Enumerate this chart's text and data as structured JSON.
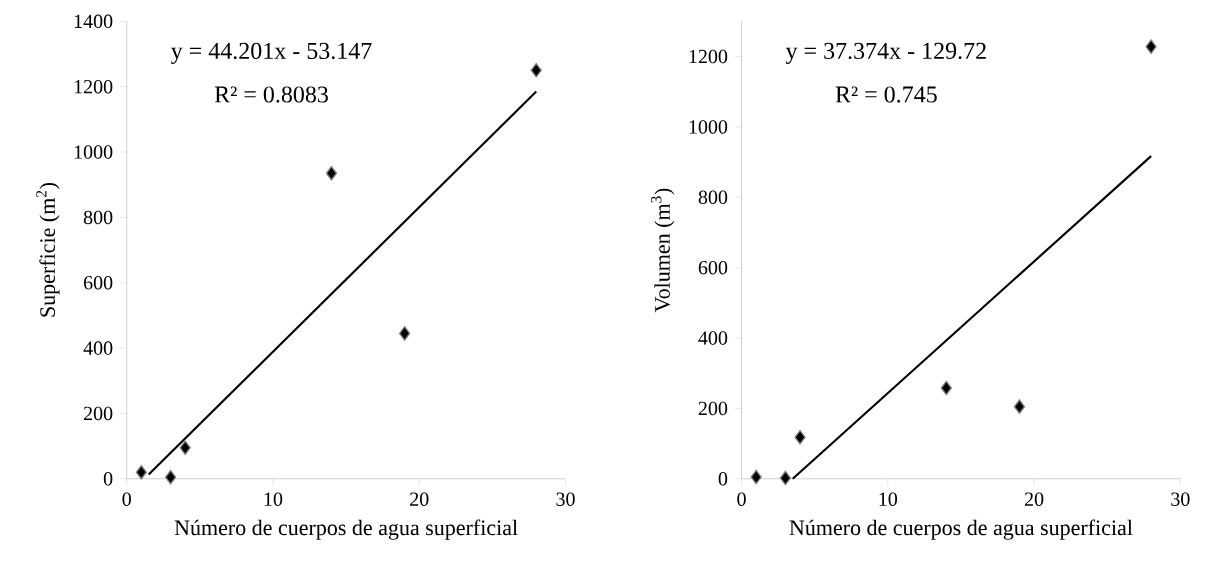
{
  "chart_data": [
    {
      "type": "scatter",
      "xlabel": "Número de cuerpos de agua superficial",
      "ylabel": "Superficie (m$^{2}$)",
      "annotations": [
        "y = 44.201x  - 53.147",
        "R² = 0.8083"
      ],
      "xlim": [
        0,
        30
      ],
      "xticks": [
        0,
        10,
        20,
        30
      ],
      "ylim": [
        0,
        1400
      ],
      "yticks": [
        0,
        200,
        400,
        600,
        800,
        1000,
        1200,
        1400
      ],
      "grid": false,
      "series": [
        {
          "marker": "diamond",
          "color": "#000000",
          "x": [
            1,
            3,
            4,
            14,
            19,
            28
          ],
          "values": [
            20,
            5,
            95,
            935,
            445,
            1250
          ]
        },
        {
          "type": "line",
          "marker": "none",
          "line_style": "solid",
          "color": "#000000",
          "x": [
            1.5,
            28
          ],
          "values": [
            13,
            1185
          ]
        }
      ]
    },
    {
      "type": "scatter",
      "xlabel": "Número de cuerpos de agua superficial",
      "ylabel": "Volumen (m$^{3}$)",
      "annotations": [
        "y = 37.374x  - 129.72",
        "R² = 0.745"
      ],
      "xlim": [
        0,
        30
      ],
      "xticks": [
        0,
        10,
        20,
        30
      ],
      "ylim": [
        0,
        1300
      ],
      "yticks": [
        0,
        200,
        400,
        600,
        800,
        1000,
        1200
      ],
      "grid": false,
      "series": [
        {
          "marker": "diamond",
          "color": "#000000",
          "x": [
            1,
            3,
            4,
            14,
            19,
            28
          ],
          "values": [
            5,
            2,
            118,
            258,
            205,
            1228
          ]
        },
        {
          "type": "line",
          "marker": "none",
          "line_style": "solid",
          "color": "#000000",
          "x": [
            3.5,
            28
          ],
          "values": [
            0,
            917
          ]
        }
      ]
    }
  ]
}
